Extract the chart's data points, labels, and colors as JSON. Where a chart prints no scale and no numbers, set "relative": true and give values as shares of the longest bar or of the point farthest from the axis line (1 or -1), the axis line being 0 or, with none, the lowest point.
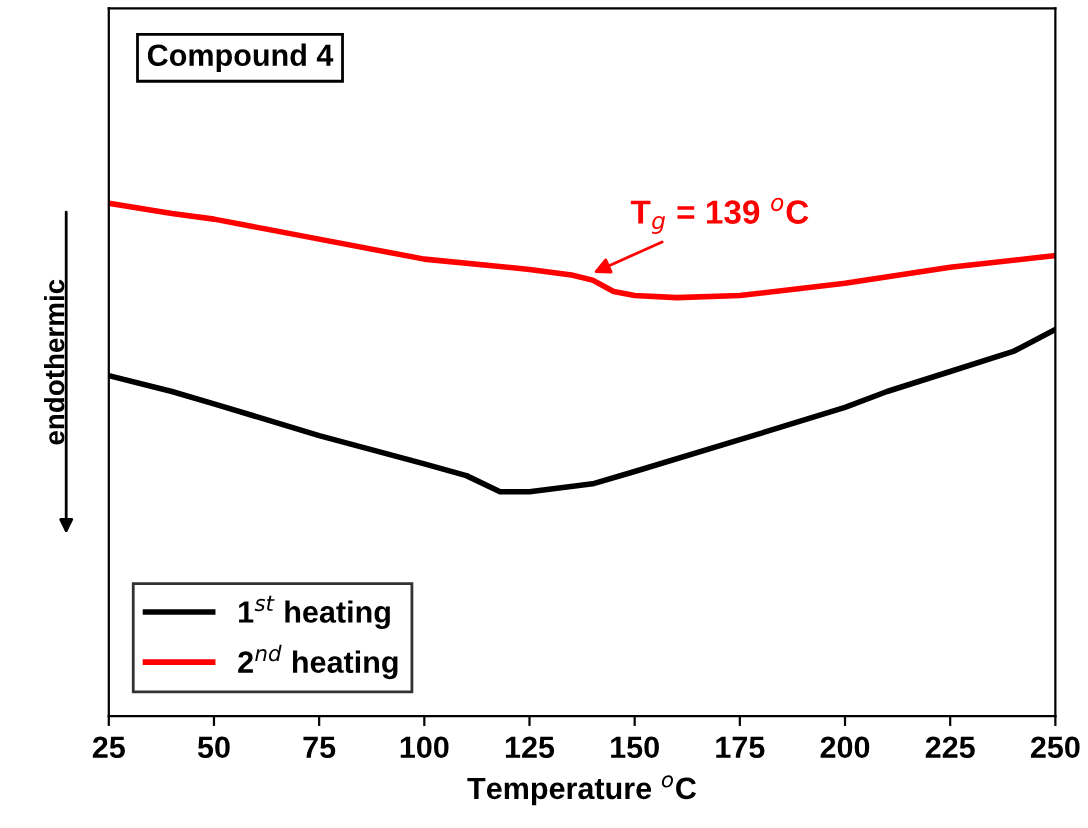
{
  "chart_data": {
    "type": "line",
    "xlabel": "Temperature $^{o}$C",
    "ylabel": "endothermic",
    "relative": true,
    "xlim": [
      25,
      250
    ],
    "xticks": [
      25,
      50,
      75,
      100,
      125,
      150,
      175,
      200,
      225,
      250
    ],
    "tick_labels": "x",
    "grid": false,
    "legend": "bottom left",
    "marker": "none",
    "line_style": "solid",
    "annotations": [
      "Compound 4",
      {
        "text": "T$_{g}$ = 139 $^{o}$C",
        "x": 139,
        "y": 0.86
      }
    ],
    "series": [
      {
        "name": "1$^{st}$ heating",
        "color": "#000000",
        "x": [
          25,
          40,
          50,
          75,
          100,
          110,
          118,
          125,
          140,
          150,
          175,
          200,
          210,
          225,
          240,
          250
        ],
        "values": [
          0.664,
          0.633,
          0.609,
          0.547,
          0.492,
          0.469,
          0.4375,
          0.4375,
          0.453,
          0.477,
          0.539,
          0.602,
          0.633,
          0.672,
          0.711,
          0.754
        ]
      },
      {
        "name": "2$^{nd}$ heating",
        "color": "#ff0000",
        "x": [
          25,
          40,
          50,
          75,
          100,
          125,
          135,
          140,
          145,
          150,
          160,
          175,
          200,
          225,
          250
        ],
        "values": [
          1.0,
          0.98,
          0.969,
          0.93,
          0.891,
          0.871,
          0.86,
          0.85,
          0.828,
          0.82,
          0.816,
          0.82,
          0.844,
          0.875,
          0.898
        ]
      }
    ]
  }
}
